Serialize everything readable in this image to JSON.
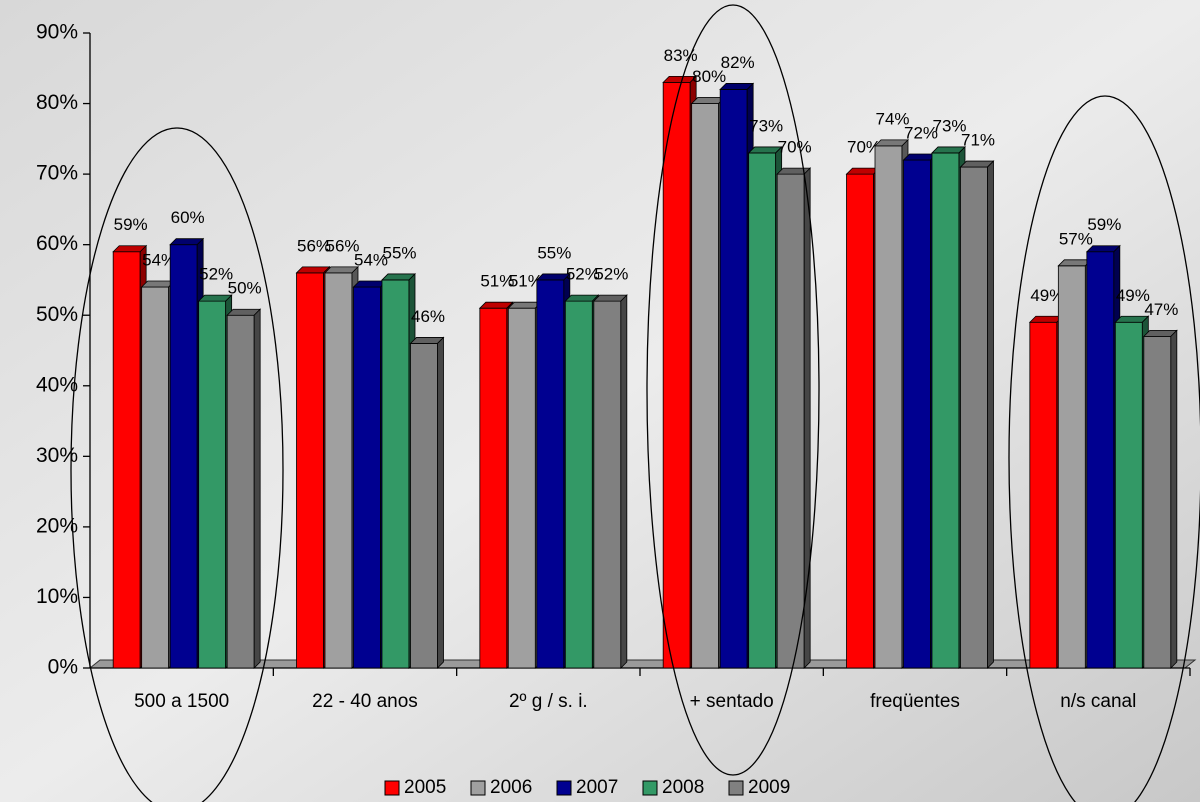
{
  "chart_data": {
    "type": "bar",
    "categories": [
      "500 a 1500",
      "22 - 40 anos",
      "2º g / s. i.",
      "+ sentado",
      "freqüentes",
      "n/s canal"
    ],
    "series": [
      {
        "name": "2005",
        "color": "#ff0000",
        "values": [
          59,
          56,
          51,
          83,
          70,
          49
        ],
        "value_labels": [
          "59%",
          "56%",
          "51%",
          "83%",
          "70%",
          "49%"
        ]
      },
      {
        "name": "2006",
        "color": "#a0a0a0",
        "values": [
          54,
          56,
          51,
          80,
          74,
          57
        ],
        "value_labels": [
          "54%",
          "56%",
          "51%",
          "80%",
          "74%",
          "57%"
        ]
      },
      {
        "name": "2007",
        "color": "#000090",
        "values": [
          60,
          54,
          55,
          82,
          72,
          59
        ],
        "value_labels": [
          "60%",
          "54%",
          "55%",
          "82%",
          "72%",
          "59%"
        ]
      },
      {
        "name": "2008",
        "color": "#339966",
        "values": [
          52,
          55,
          52,
          73,
          73,
          49
        ],
        "value_labels": [
          "52%",
          "55%",
          "52%",
          "73%",
          "73%",
          "49%"
        ]
      },
      {
        "name": "2009",
        "color": "#808080",
        "values": [
          50,
          46,
          52,
          70,
          71,
          47
        ],
        "value_labels": [
          "50%",
          "46%",
          "52%",
          "70%",
          "71%",
          "47%"
        ]
      }
    ],
    "ylim": [
      0,
      90
    ],
    "yticks": [
      {
        "value": 0,
        "label": "0%"
      },
      {
        "value": 10,
        "label": "10%"
      },
      {
        "value": 20,
        "label": "20%"
      },
      {
        "value": 30,
        "label": "30%"
      },
      {
        "value": 40,
        "label": "40%"
      },
      {
        "value": 50,
        "label": "50%"
      },
      {
        "value": 60,
        "label": "60%"
      },
      {
        "value": 70,
        "label": "70%"
      },
      {
        "value": 80,
        "label": "80%"
      },
      {
        "value": 90,
        "label": "90%"
      }
    ],
    "legend": "bottom"
  }
}
